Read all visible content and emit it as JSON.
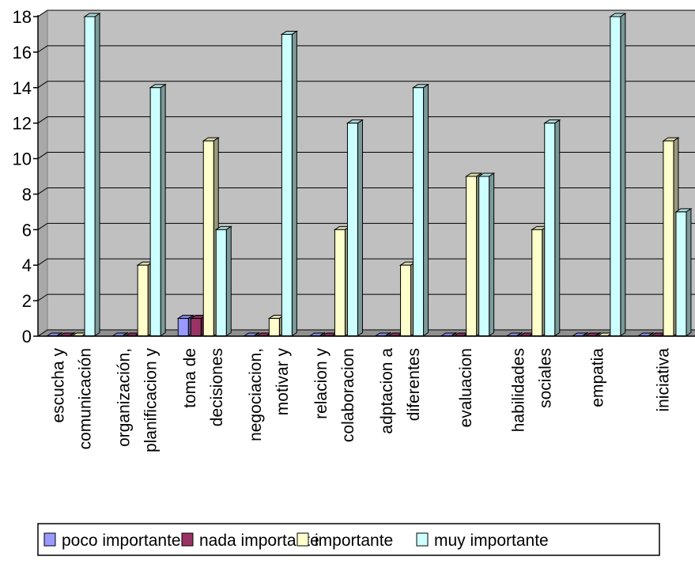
{
  "chart_data": {
    "type": "bar",
    "categories": [
      [
        "escucha y",
        "comunicación"
      ],
      [
        "organización,",
        "planificacion y"
      ],
      [
        "toma de",
        "decisiones"
      ],
      [
        "negociacion,",
        "motivar y"
      ],
      [
        "relacion y",
        "colaboracion"
      ],
      [
        "adptacion a",
        "diferentes"
      ],
      [
        "evaluacion"
      ],
      [
        "habilidades",
        "sociales"
      ],
      [
        "empatia"
      ],
      [
        "iniciativa"
      ]
    ],
    "series": [
      {
        "name": "poco importante",
        "color": "#9999ff",
        "values": [
          0,
          0,
          1,
          0,
          0,
          0,
          0,
          0,
          0,
          0
        ]
      },
      {
        "name": "nada importante",
        "color": "#993366",
        "values": [
          0,
          0,
          1,
          0,
          0,
          0,
          0,
          0,
          0,
          0
        ]
      },
      {
        "name": "importante",
        "color": "#ffffcc",
        "values": [
          0,
          4,
          11,
          1,
          6,
          4,
          9,
          6,
          0,
          11
        ]
      },
      {
        "name": "muy importante",
        "color": "#ccffff",
        "values": [
          18,
          14,
          6,
          17,
          12,
          14,
          9,
          12,
          18,
          7
        ]
      }
    ],
    "yticks": [
      "0",
      "2",
      "4",
      "6",
      "8",
      "10",
      "12",
      "14",
      "16",
      "18"
    ],
    "ylim": [
      0,
      18
    ],
    "grid": true,
    "legend_position": "bottom",
    "plot_background": "#c0c0c0"
  }
}
